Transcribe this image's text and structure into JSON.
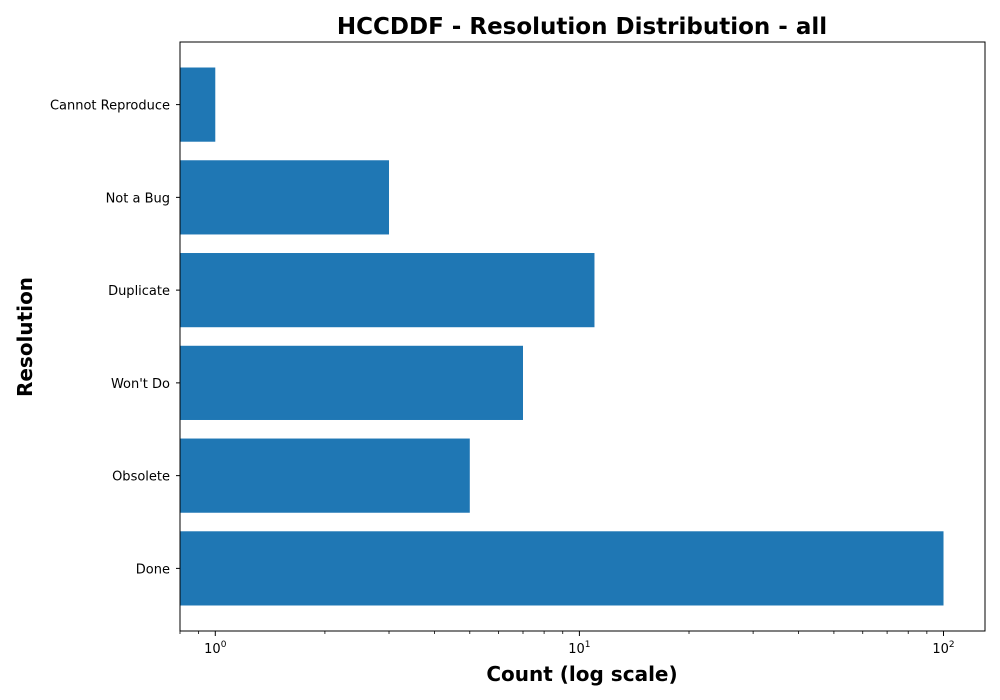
{
  "chart_data": {
    "type": "bar",
    "orientation": "horizontal",
    "title": "HCCDDF - Resolution Distribution - all",
    "xlabel": "Count (log scale)",
    "ylabel": "Resolution",
    "x_scale": "log",
    "xlim": [
      0.8,
      130
    ],
    "x_ticks": [
      {
        "value": 1,
        "base": "10",
        "exp": "0"
      },
      {
        "value": 10,
        "base": "10",
        "exp": "1"
      },
      {
        "value": 100,
        "base": "10",
        "exp": "2"
      }
    ],
    "categories": [
      "Cannot Reproduce",
      "Not a Bug",
      "Duplicate",
      "Won't Do",
      "Obsolete",
      "Done"
    ],
    "values": [
      1,
      3,
      11,
      7,
      5,
      100
    ],
    "bar_color": "#1f77b4",
    "grid": false,
    "legend": "none"
  }
}
